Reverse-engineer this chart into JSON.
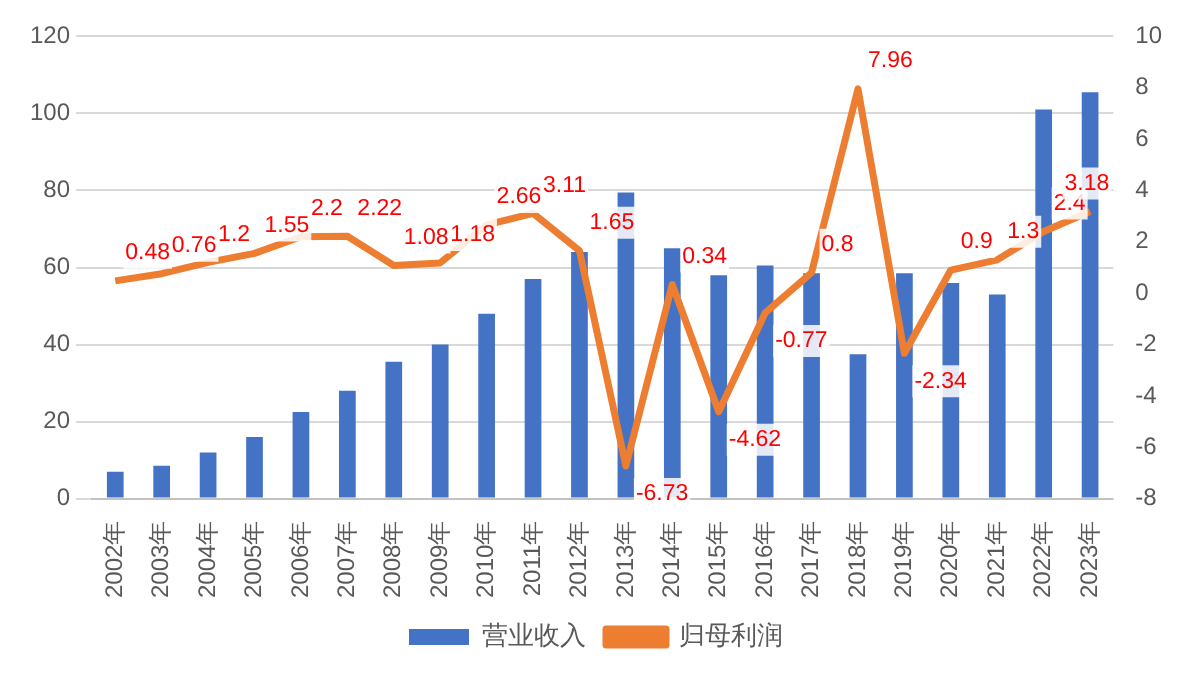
{
  "chart_data": {
    "type": "bar",
    "categories": [
      "2002年",
      "2003年",
      "2004年",
      "2005年",
      "2006年",
      "2007年",
      "2008年",
      "2009年",
      "2010年",
      "2011年",
      "2012年",
      "2013年",
      "2014年",
      "2015年",
      "2016年",
      "2017年",
      "2018年",
      "2019年",
      "2020年",
      "2021年",
      "2022年",
      "2023年"
    ],
    "series": [
      {
        "name": "营业收入",
        "color": "#4472c4",
        "values": [
          7,
          8.5,
          12,
          16,
          22.5,
          28,
          35.5,
          40,
          48,
          57,
          64,
          79.5,
          65,
          58,
          60.5,
          58.5,
          37.5,
          58.5,
          56,
          53,
          101,
          105.5
        ]
      },
      {
        "name": "归母利润",
        "type": "line",
        "axis": "y2",
        "color": "#ed7d31",
        "data_labels": true,
        "values": [
          0.48,
          0.76,
          1.2,
          1.55,
          2.2,
          2.22,
          1.08,
          1.18,
          2.66,
          3.11,
          1.65,
          -6.73,
          0.34,
          -4.62,
          -0.77,
          0.8,
          7.96,
          -2.34,
          0.9,
          1.3,
          2.4,
          3.18
        ]
      }
    ],
    "ylim": [
      0,
      120
    ],
    "yticks": [
      0,
      20,
      40,
      60,
      80,
      100,
      120
    ],
    "y2lim": [
      -8,
      10
    ],
    "y2ticks": [
      -8,
      -6,
      -4,
      -2,
      0,
      2,
      4,
      6,
      8,
      10
    ],
    "grid": "y",
    "legend": "bottom",
    "marker": "none"
  }
}
